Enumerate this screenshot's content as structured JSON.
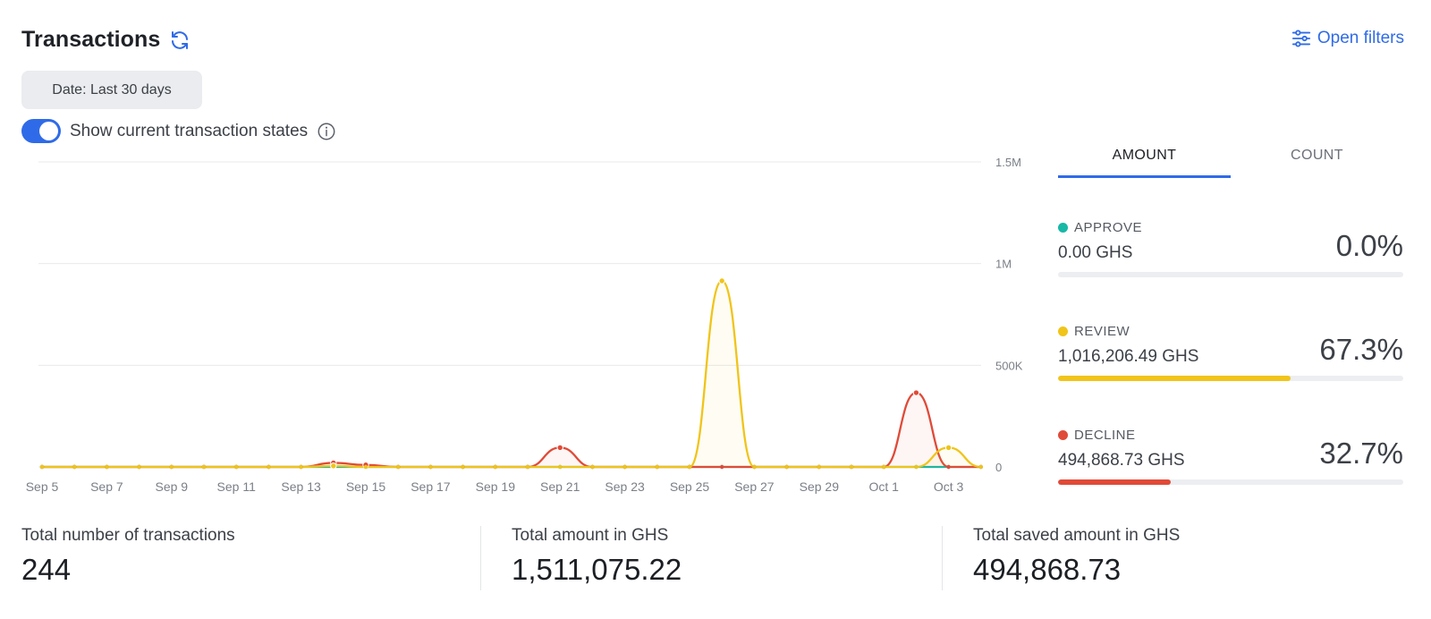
{
  "header": {
    "title": "Transactions",
    "refresh_icon": "refresh-icon",
    "open_filters_label": "Open filters",
    "open_filters_icon": "sliders-icon"
  },
  "date_filter": {
    "label": "Date: Last 30 days"
  },
  "toggle": {
    "label": "Show current transaction states",
    "on": true,
    "info_icon": "info-icon"
  },
  "colors": {
    "accent": "#2f6be8",
    "approve": "#17b8a6",
    "review": "#f0c419",
    "decline": "#e04a38",
    "gridline": "#e8eaed",
    "axis_text": "#7a7f87"
  },
  "tabs": [
    {
      "label": "AMOUNT",
      "active": true
    },
    {
      "label": "COUNT",
      "active": false
    }
  ],
  "states": [
    {
      "label": "APPROVE",
      "amount": "0.00 GHS",
      "percent": "0.0%",
      "fraction": 0.0,
      "color": "#17b8a6"
    },
    {
      "label": "REVIEW",
      "amount": "1,016,206.49 GHS",
      "percent": "67.3%",
      "fraction": 0.673,
      "color": "#f0c419"
    },
    {
      "label": "DECLINE",
      "amount": "494,868.73 GHS",
      "percent": "32.7%",
      "fraction": 0.327,
      "color": "#e04a38"
    }
  ],
  "totals": [
    {
      "label": "Total number of transactions",
      "value": "244"
    },
    {
      "label": "Total amount in GHS",
      "value": "1,511,075.22"
    },
    {
      "label": "Total saved amount in GHS",
      "value": "494,868.73"
    }
  ],
  "chart_data": {
    "type": "line",
    "x": [
      "Sep 5",
      "Sep 6",
      "Sep 7",
      "Sep 8",
      "Sep 9",
      "Sep 10",
      "Sep 11",
      "Sep 12",
      "Sep 13",
      "Sep 14",
      "Sep 15",
      "Sep 16",
      "Sep 17",
      "Sep 18",
      "Sep 19",
      "Sep 20",
      "Sep 21",
      "Sep 22",
      "Sep 23",
      "Sep 24",
      "Sep 25",
      "Sep 26",
      "Sep 27",
      "Sep 28",
      "Sep 29",
      "Sep 30",
      "Oct 1",
      "Oct 2",
      "Oct 3",
      "Oct 4"
    ],
    "x_tick_labels": [
      "Sep 5",
      "Sep 7",
      "Sep 9",
      "Sep 11",
      "Sep 13",
      "Sep 15",
      "Sep 17",
      "Sep 19",
      "Sep 21",
      "Sep 23",
      "Sep 25",
      "Sep 27",
      "Sep 29",
      "Oct 1",
      "Oct 3"
    ],
    "y_ticks": [
      0,
      500000,
      1000000,
      1500000
    ],
    "y_tick_labels": [
      "0",
      "500K",
      "1M",
      "1.5M"
    ],
    "ylim": [
      0,
      1500000
    ],
    "grid": true,
    "series": [
      {
        "key": "approve",
        "color": "#17b8a6",
        "values": [
          0,
          0,
          0,
          0,
          0,
          0,
          0,
          0,
          0,
          0,
          0,
          0,
          0,
          0,
          0,
          0,
          0,
          0,
          0,
          0,
          0,
          0,
          0,
          0,
          0,
          0,
          0,
          0,
          0,
          0
        ]
      },
      {
        "key": "decline",
        "color": "#e04a38",
        "values": [
          0,
          0,
          0,
          0,
          0,
          0,
          0,
          0,
          0,
          20000,
          10000,
          0,
          0,
          0,
          0,
          0,
          95000,
          0,
          0,
          0,
          0,
          0,
          0,
          0,
          0,
          0,
          0,
          365000,
          0,
          0
        ]
      },
      {
        "key": "review",
        "color": "#f0c419",
        "values": [
          0,
          0,
          0,
          0,
          0,
          0,
          0,
          0,
          0,
          5000,
          0,
          0,
          0,
          0,
          0,
          0,
          0,
          0,
          0,
          0,
          0,
          915000,
          0,
          0,
          0,
          0,
          0,
          0,
          95000,
          0
        ]
      }
    ]
  }
}
